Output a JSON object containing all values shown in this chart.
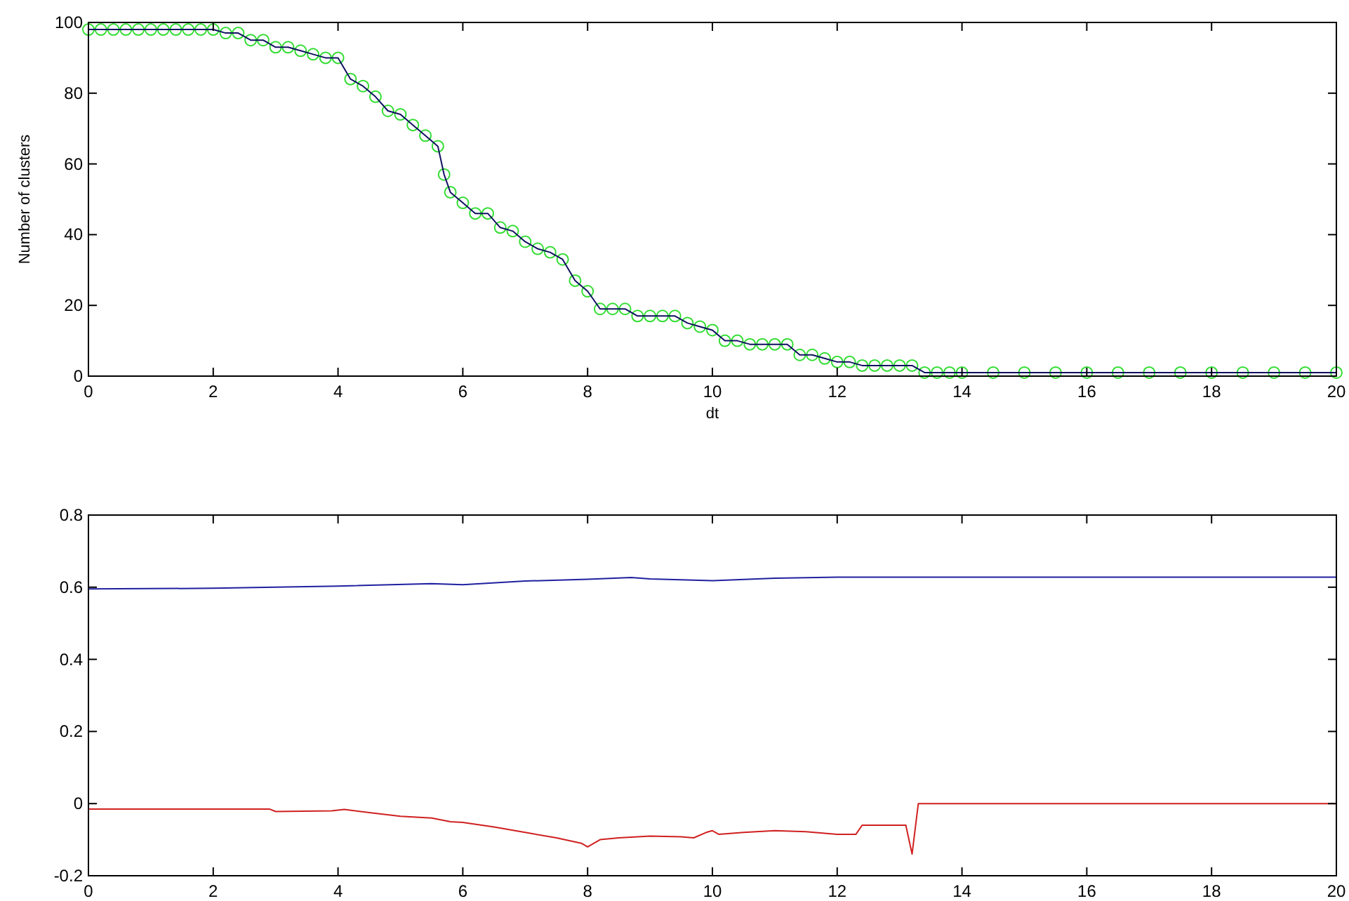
{
  "chart_data": [
    {
      "type": "line",
      "xlabel": "dt",
      "ylabel": "Number of clusters",
      "marker": "circle",
      "xlim": [
        0,
        20
      ],
      "ylim": [
        0,
        100
      ],
      "xticks": [
        0,
        2,
        4,
        6,
        8,
        10,
        12,
        14,
        16,
        18,
        20
      ],
      "yticks": [
        0,
        20,
        40,
        60,
        80,
        100
      ],
      "series": [
        {
          "color": "#33dd33",
          "x": [
            0,
            0.2,
            0.4,
            0.6,
            0.8,
            1,
            1.2,
            1.4,
            1.6,
            1.8,
            2,
            2.2,
            2.4,
            2.6,
            2.8,
            3,
            3.2,
            3.4,
            3.6,
            3.8,
            4,
            4.2,
            4.4,
            4.6,
            4.8,
            5,
            5.2,
            5.4,
            5.6,
            5.7,
            5.8,
            6,
            6.2,
            6.4,
            6.6,
            6.8,
            7,
            7.2,
            7.4,
            7.6,
            7.8,
            8,
            8.2,
            8.4,
            8.6,
            8.8,
            9,
            9.2,
            9.4,
            9.6,
            9.8,
            10,
            10.2,
            10.4,
            10.6,
            10.8,
            11,
            11.2,
            11.4,
            11.6,
            11.8,
            12,
            12.2,
            12.4,
            12.6,
            12.8,
            13,
            13.2,
            13.4,
            13.6,
            13.8,
            14,
            14.5,
            15,
            15.5,
            16,
            16.5,
            17,
            17.5,
            18,
            18.5,
            19,
            19.5,
            20
          ],
          "values": [
            98,
            98,
            98,
            98,
            98,
            98,
            98,
            98,
            98,
            98,
            98,
            97,
            97,
            95,
            95,
            93,
            93,
            92,
            91,
            90,
            90,
            84,
            82,
            79,
            75,
            74,
            71,
            68,
            65,
            57,
            52,
            49,
            46,
            46,
            42,
            41,
            38,
            36,
            35,
            33,
            27,
            24,
            19,
            19,
            19,
            17,
            17,
            17,
            17,
            15,
            14,
            13,
            10,
            10,
            9,
            9,
            9,
            9,
            6,
            6,
            5,
            4,
            4,
            3,
            3,
            3,
            3,
            3,
            1,
            1,
            1,
            1,
            1,
            1,
            1,
            1,
            1,
            1,
            1,
            1,
            1,
            1,
            1,
            1
          ]
        }
      ]
    },
    {
      "type": "line",
      "xlim": [
        0,
        20
      ],
      "ylim": [
        -0.2,
        0.8
      ],
      "xticks": [
        0,
        2,
        4,
        6,
        8,
        10,
        12,
        14,
        16,
        18,
        20
      ],
      "yticks": [
        -0.2,
        0,
        0.2,
        0.4,
        0.6,
        0.8
      ],
      "series": [
        {
          "color": "#2020a0",
          "x": [
            0,
            2,
            4,
            5.5,
            6,
            7,
            8,
            8.7,
            9,
            9.6,
            10,
            11,
            12,
            14,
            20
          ],
          "values": [
            0.595,
            0.597,
            0.603,
            0.61,
            0.607,
            0.617,
            0.622,
            0.627,
            0.623,
            0.62,
            0.618,
            0.625,
            0.628,
            0.628,
            0.628
          ]
        },
        {
          "color": "#d02020",
          "x": [
            0,
            2.9,
            3,
            3.9,
            4.1,
            4.5,
            5,
            5.5,
            5.8,
            6,
            6.5,
            7,
            7.5,
            7.9,
            8,
            8.2,
            8.5,
            9,
            9.5,
            9.7,
            9.9,
            10,
            10.1,
            10.5,
            11,
            11.5,
            12,
            12.3,
            12.4,
            13,
            13.1,
            13.2,
            13.3,
            20
          ],
          "values": [
            -0.015,
            -0.015,
            -0.022,
            -0.02,
            -0.016,
            -0.025,
            -0.035,
            -0.04,
            -0.05,
            -0.052,
            -0.065,
            -0.08,
            -0.095,
            -0.11,
            -0.12,
            -0.1,
            -0.095,
            -0.09,
            -0.092,
            -0.095,
            -0.08,
            -0.075,
            -0.085,
            -0.08,
            -0.075,
            -0.078,
            -0.085,
            -0.085,
            -0.06,
            -0.06,
            -0.06,
            -0.14,
            0,
            0
          ]
        }
      ]
    }
  ]
}
